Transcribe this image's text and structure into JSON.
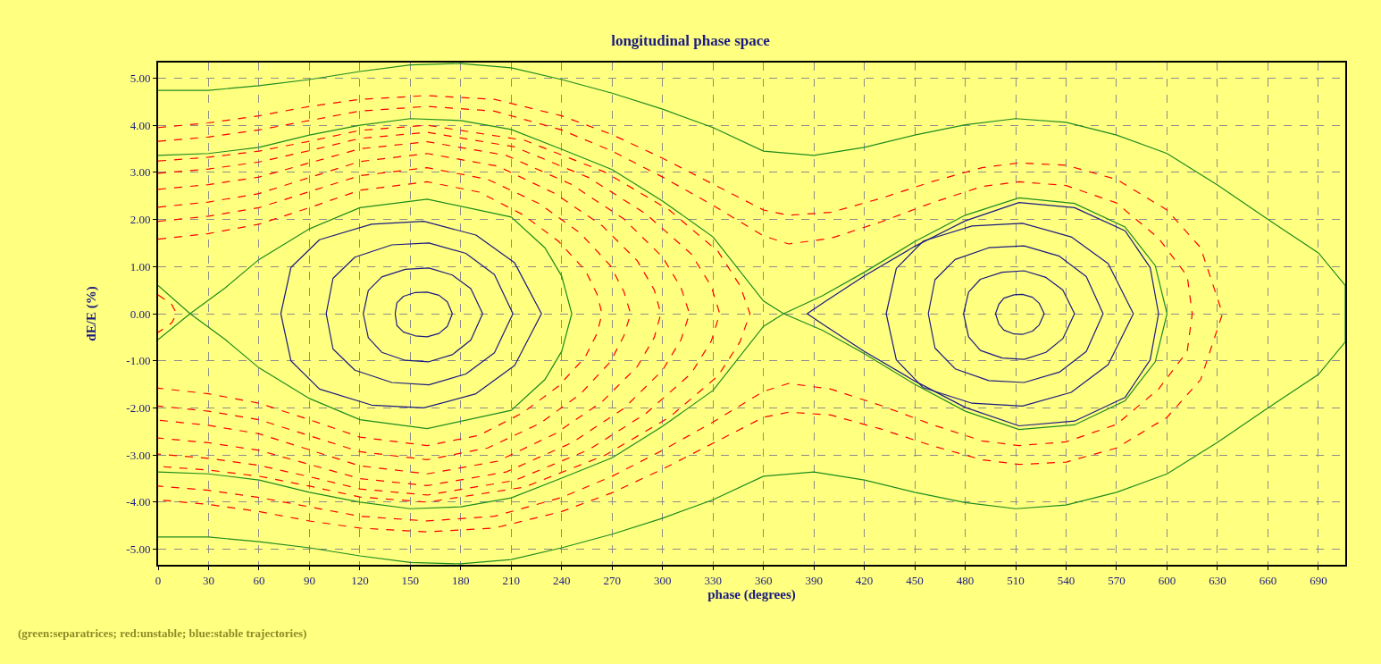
{
  "chart_data": {
    "type": "line",
    "title": "longitudinal phase space",
    "xlabel": "phase (degrees)",
    "ylabel": "dE/E (%)",
    "annotations": [
      "(green:separatrices; red:unstable; blue:stable trajectories)"
    ],
    "xlim": [
      0,
      706
    ],
    "xticks": [
      0,
      30,
      60,
      90,
      120,
      150,
      180,
      210,
      240,
      270,
      300,
      330,
      360,
      390,
      420,
      450,
      480,
      510,
      540,
      570,
      600,
      630,
      660,
      690
    ],
    "ylim": [
      -5.33,
      5.33
    ],
    "yticks": [
      {
        "value": 5,
        "label": "5.00"
      },
      {
        "value": 4,
        "label": "4.00"
      },
      {
        "value": 3,
        "label": "3.00"
      },
      {
        "value": 2,
        "label": "2.00"
      },
      {
        "value": 1,
        "label": "1.00"
      },
      {
        "value": 0,
        "label": "0.00"
      },
      {
        "value": -1,
        "label": "-1.00"
      },
      {
        "value": -2,
        "label": "-2.00"
      },
      {
        "value": -3,
        "label": "-3.00"
      },
      {
        "value": -4,
        "label": "-4.00"
      },
      {
        "value": -5,
        "label": "-5.00"
      }
    ],
    "grid": true,
    "series": [
      {
        "color": "#1e8c1e",
        "line_style": "solid",
        "x": [
          0,
          30,
          60,
          90,
          120,
          150,
          180,
          210,
          240,
          270,
          300,
          330,
          360,
          390,
          420,
          450,
          480,
          510,
          540,
          570,
          600,
          630,
          660,
          690,
          706,
          706,
          690,
          660,
          630,
          600,
          570,
          540,
          510,
          480,
          450,
          420,
          390,
          360,
          330,
          300,
          270,
          240,
          210,
          180,
          150,
          120,
          90,
          60,
          30,
          0
        ],
        "values": [
          4.74,
          4.74,
          4.84,
          4.97,
          5.14,
          5.28,
          5.31,
          5.22,
          4.97,
          4.68,
          4.34,
          3.95,
          3.45,
          3.36,
          3.53,
          3.79,
          4.01,
          4.14,
          4.06,
          3.79,
          3.4,
          2.73,
          2.0,
          1.29,
          0.6,
          -0.6,
          -1.29,
          -2.0,
          -2.73,
          -3.4,
          -3.79,
          -4.06,
          -4.14,
          -4.01,
          -3.79,
          -3.53,
          -3.36,
          -3.45,
          -3.95,
          -4.34,
          -4.68,
          -4.97,
          -5.22,
          -5.31,
          -5.28,
          -5.14,
          -4.97,
          -4.84,
          -4.74,
          -4.74
        ]
      },
      {
        "color": "#1e8c1e",
        "line_style": "solid",
        "x": [
          0,
          30,
          60,
          90,
          120,
          150,
          180,
          210,
          240,
          270,
          300,
          330,
          360,
          372,
          395,
          420,
          450,
          480,
          512,
          545,
          575,
          593,
          600,
          593,
          575,
          545,
          512,
          480,
          450,
          420,
          395,
          372,
          360,
          330,
          300,
          270,
          240,
          210,
          180,
          150,
          120,
          90,
          60,
          30,
          0
        ],
        "values": [
          3.36,
          3.4,
          3.53,
          3.79,
          4.0,
          4.14,
          4.1,
          3.91,
          3.49,
          3.06,
          2.39,
          1.63,
          0.27,
          0,
          -0.35,
          -0.85,
          -1.5,
          -2.07,
          -2.46,
          -2.36,
          -1.85,
          -1.02,
          0,
          1.02,
          1.84,
          2.34,
          2.46,
          2.09,
          1.53,
          0.88,
          0.38,
          0,
          -0.27,
          -1.63,
          -2.39,
          -3.06,
          -3.49,
          -3.91,
          -4.1,
          -4.14,
          -4.0,
          -3.79,
          -3.53,
          -3.4,
          -3.36
        ]
      },
      {
        "color": "#1e8c1e",
        "line_style": "solid",
        "x": [
          0,
          19,
          40,
          60,
          90,
          120,
          160,
          210,
          230,
          240,
          246,
          240,
          230,
          210,
          160,
          120,
          90,
          60,
          40,
          19,
          0
        ],
        "values": [
          0.6,
          0,
          -0.55,
          -1.15,
          -1.8,
          -2.25,
          -2.44,
          -2.05,
          -1.4,
          -0.8,
          0,
          0.8,
          1.4,
          2.05,
          2.43,
          2.25,
          1.8,
          1.15,
          0.55,
          0,
          -0.55
        ]
      },
      {
        "color": "#ff0000",
        "line_style": "dashed",
        "x": [
          0,
          30,
          60,
          90,
          120,
          160,
          200,
          240,
          270,
          300,
          330,
          360,
          375,
          400,
          430,
          460,
          490,
          512,
          540,
          570,
          600,
          620,
          633,
          620,
          600,
          570,
          540,
          512,
          490,
          460,
          430,
          400,
          375,
          360,
          330,
          300,
          270,
          240,
          200,
          160,
          120,
          90,
          60,
          30,
          0
        ],
        "values": [
          3.95,
          4.05,
          4.2,
          4.4,
          4.55,
          4.63,
          4.55,
          4.2,
          3.8,
          3.3,
          2.75,
          2.2,
          2.09,
          2.15,
          2.45,
          2.8,
          3.1,
          3.2,
          3.15,
          2.85,
          2.2,
          1.4,
          0,
          -1.4,
          -2.2,
          -2.85,
          -3.15,
          -3.2,
          -3.1,
          -2.8,
          -2.45,
          -2.15,
          -2.09,
          -2.2,
          -2.75,
          -3.3,
          -3.8,
          -4.2,
          -4.55,
          -4.63,
          -4.55,
          -4.4,
          -4.2,
          -4.05,
          -3.95
        ]
      },
      {
        "color": "#ff0000",
        "line_style": "dashed",
        "x": [
          0,
          30,
          60,
          90,
          120,
          160,
          200,
          240,
          270,
          300,
          330,
          360,
          375,
          400,
          430,
          460,
          490,
          512,
          540,
          570,
          595,
          612,
          615,
          612,
          595,
          570,
          540,
          512,
          490,
          460,
          430,
          400,
          375,
          360,
          330,
          300,
          270,
          240,
          200,
          160,
          120,
          90,
          60,
          30,
          0
        ],
        "values": [
          3.66,
          3.75,
          3.9,
          4.1,
          4.3,
          4.4,
          4.3,
          3.9,
          3.45,
          2.9,
          2.3,
          1.65,
          1.48,
          1.6,
          1.95,
          2.35,
          2.7,
          2.8,
          2.72,
          2.35,
          1.6,
          0.8,
          0,
          -0.8,
          -1.6,
          -2.35,
          -2.72,
          -2.8,
          -2.7,
          -2.35,
          -1.95,
          -1.6,
          -1.48,
          -1.65,
          -2.3,
          -2.9,
          -3.45,
          -3.9,
          -4.3,
          -4.4,
          -4.3,
          -4.1,
          -3.9,
          -3.75,
          -3.66
        ]
      },
      {
        "color": "#ff0000",
        "line_style": "dashed",
        "x": [
          0,
          30,
          60,
          90,
          120,
          160,
          218,
          266,
          304,
          333,
          346,
          352,
          346,
          333,
          304,
          266,
          218,
          160,
          120,
          90,
          60,
          30,
          0
        ],
        "values": [
          3.24,
          3.32,
          3.45,
          3.66,
          3.89,
          4.0,
          3.68,
          3.0,
          2.2,
          1.32,
          0.6,
          0,
          -0.6,
          -1.32,
          -2.2,
          -3.0,
          -3.68,
          -4.0,
          -3.89,
          -3.66,
          -3.45,
          -3.32,
          -3.24
        ]
      },
      {
        "color": "#ff0000",
        "line_style": "dashed",
        "x": [
          0,
          30,
          60,
          90,
          120,
          160,
          212,
          256,
          290,
          317,
          329,
          334,
          329,
          317,
          290,
          256,
          212,
          160,
          120,
          90,
          60,
          30,
          0
        ],
        "values": [
          2.98,
          3.07,
          3.22,
          3.46,
          3.72,
          3.85,
          3.54,
          2.89,
          2.12,
          1.27,
          0.58,
          0,
          -0.58,
          -1.27,
          -2.12,
          -2.89,
          -3.54,
          -3.85,
          -3.72,
          -3.46,
          -3.22,
          -3.07,
          -2.98
        ]
      },
      {
        "color": "#ff0000",
        "line_style": "dashed",
        "x": [
          0,
          30,
          60,
          90,
          120,
          160,
          207,
          246,
          277,
          300,
          311,
          316,
          311,
          300,
          277,
          246,
          207,
          160,
          120,
          90,
          60,
          30,
          0
        ],
        "values": [
          2.64,
          2.74,
          2.9,
          3.2,
          3.5,
          3.65,
          3.36,
          2.74,
          2.01,
          1.2,
          0.55,
          0,
          -0.55,
          -1.2,
          -2.01,
          -2.74,
          -3.36,
          -3.65,
          -3.5,
          -3.2,
          -2.9,
          -2.74,
          -2.64
        ]
      },
      {
        "color": "#ff0000",
        "line_style": "dashed",
        "x": [
          0,
          30,
          60,
          90,
          120,
          160,
          202,
          236,
          264,
          285,
          295,
          299,
          295,
          285,
          264,
          236,
          202,
          160,
          120,
          90,
          60,
          30,
          0
        ],
        "values": [
          2.26,
          2.37,
          2.55,
          2.89,
          3.23,
          3.4,
          3.13,
          2.55,
          1.87,
          1.12,
          0.51,
          0,
          -0.51,
          -1.12,
          -1.87,
          -2.55,
          -3.13,
          -3.4,
          -3.23,
          -2.89,
          -2.55,
          -2.37,
          -2.26
        ]
      },
      {
        "color": "#ff0000",
        "line_style": "dashed",
        "x": [
          0,
          30,
          60,
          90,
          120,
          160,
          196,
          227,
          251,
          269,
          277,
          281,
          277,
          269,
          251,
          227,
          196,
          160,
          120,
          90,
          60,
          30,
          0
        ],
        "values": [
          1.96,
          2.07,
          2.25,
          2.59,
          2.93,
          3.1,
          2.85,
          2.33,
          1.71,
          1.02,
          0.47,
          0,
          -0.47,
          -1.02,
          -1.71,
          -2.33,
          -2.85,
          -3.1,
          -2.93,
          -2.59,
          -2.25,
          -2.07,
          -1.96
        ]
      },
      {
        "color": "#ff0000",
        "line_style": "dashed",
        "x": [
          0,
          30,
          60,
          90,
          120,
          160,
          191,
          217,
          238,
          254,
          261,
          264,
          261,
          254,
          238,
          217,
          191,
          160,
          120,
          90,
          60,
          30,
          0
        ],
        "values": [
          1.58,
          1.7,
          1.9,
          2.25,
          2.62,
          2.8,
          2.58,
          2.1,
          1.54,
          0.92,
          0.42,
          0,
          -0.42,
          -0.92,
          -1.54,
          -2.1,
          -2.58,
          -2.8,
          -2.62,
          -2.25,
          -1.9,
          -1.7,
          -1.58
        ]
      },
      {
        "color": "#ff0000",
        "line_style": "dashed",
        "x": [
          0,
          8,
          11,
          8,
          0
        ],
        "values": [
          0.4,
          0.2,
          0,
          -0.2,
          -0.4
        ]
      }
    ]
  }
}
